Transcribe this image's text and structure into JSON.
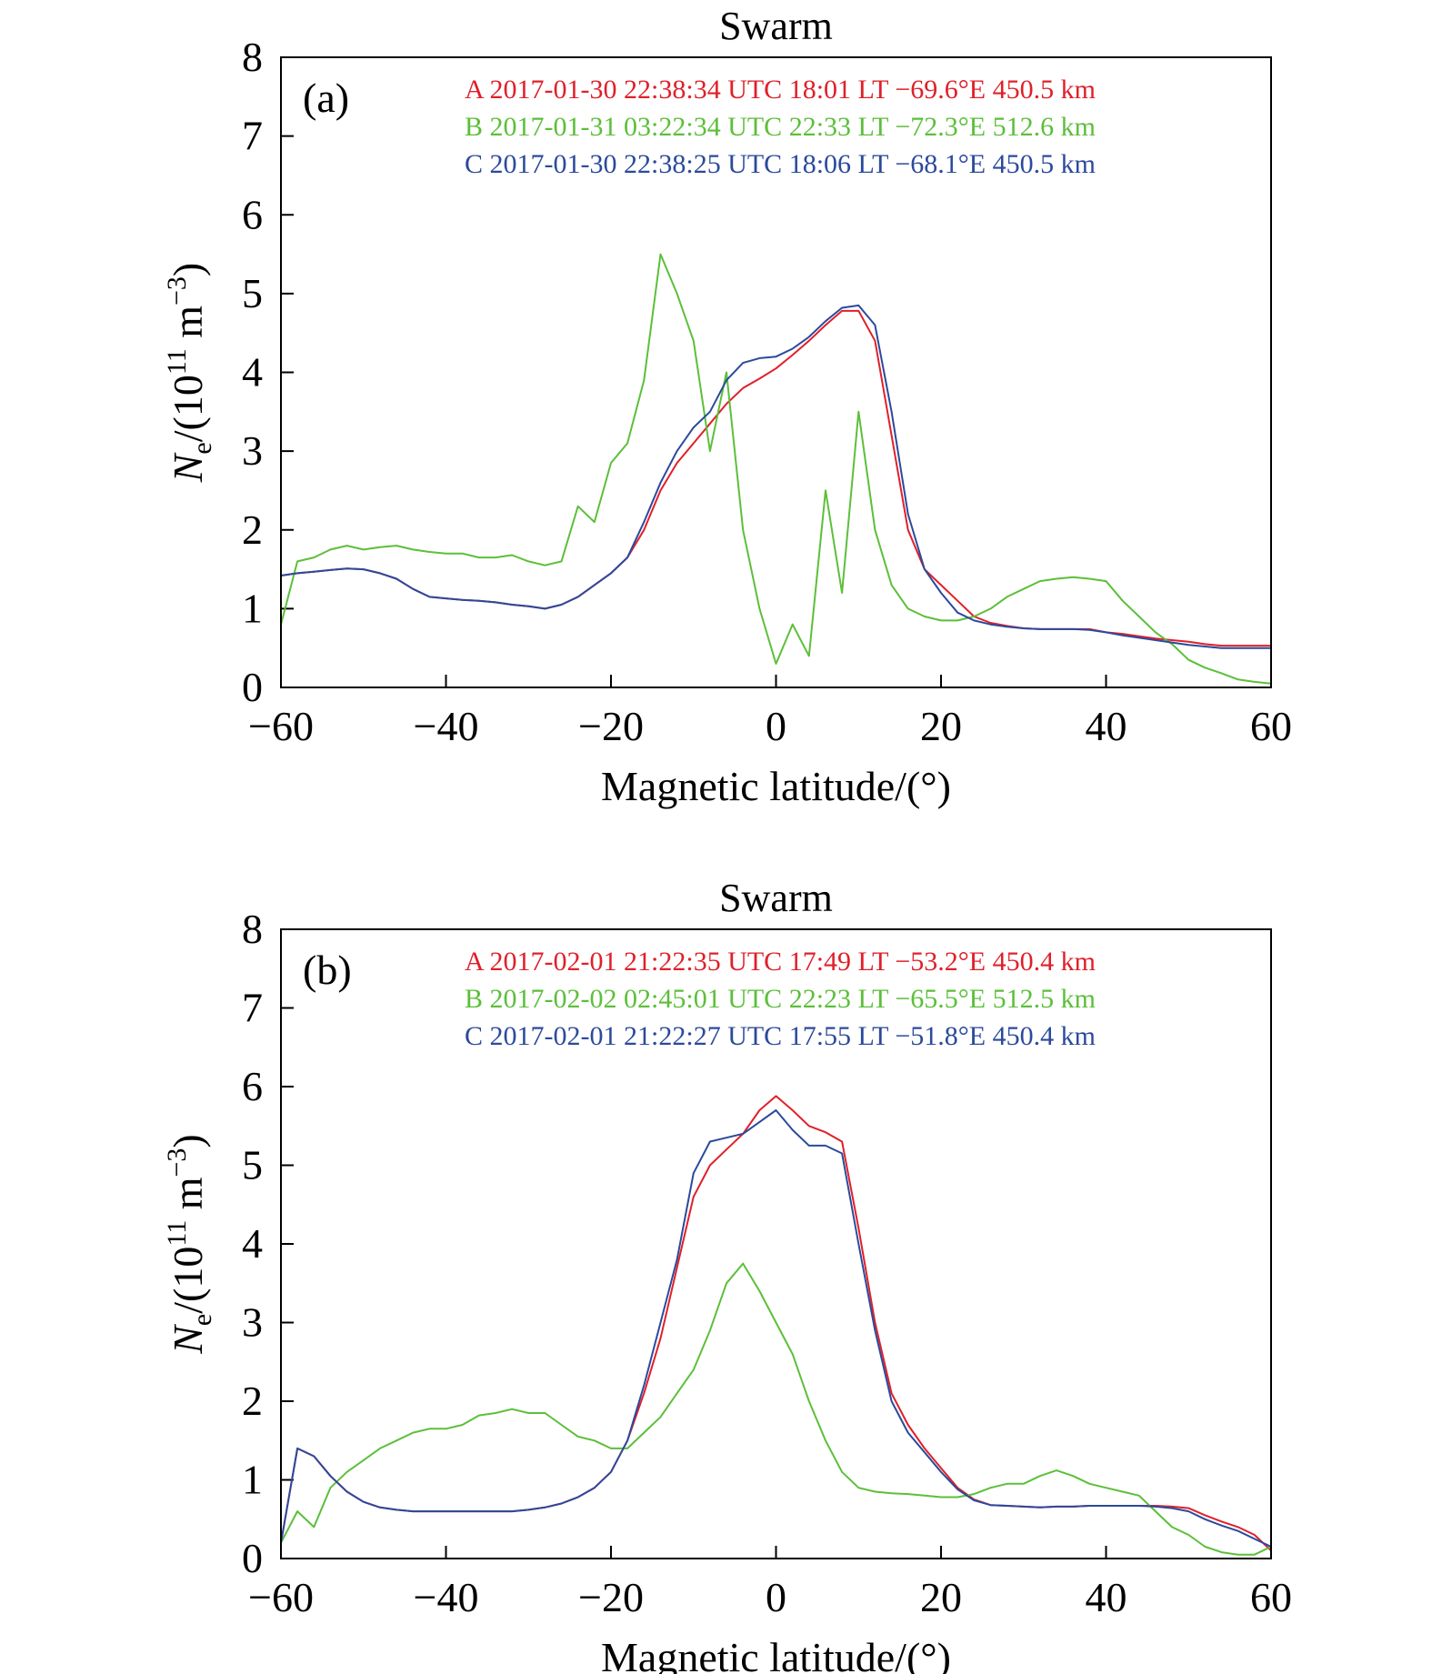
{
  "chart_data": [
    {
      "type": "line",
      "title": "Swarm",
      "panel_label": "(a)",
      "xlabel": "Magnetic latitude/(°)",
      "ylabel": [
        "N",
        "e",
        "/(10",
        "11",
        " m",
        "−3",
        ")"
      ],
      "xlim": [
        -60,
        60
      ],
      "ylim": [
        0,
        8
      ],
      "xticks": [
        {
          "value": -60,
          "label": "−60"
        },
        {
          "value": -40,
          "label": "−40"
        },
        {
          "value": -20,
          "label": "−20"
        },
        0,
        20,
        40,
        60
      ],
      "yticks": [
        0,
        1,
        2,
        3,
        4,
        5,
        6,
        7,
        8
      ],
      "x": [
        -60,
        -58,
        -56,
        -54,
        -52,
        -50,
        -48,
        -46,
        -44,
        -42,
        -40,
        -38,
        -36,
        -34,
        -32,
        -30,
        -28,
        -26,
        -24,
        -22,
        -20,
        -18,
        -16,
        -14,
        -12,
        -10,
        -8,
        -6,
        -4,
        -2,
        0,
        2,
        4,
        6,
        8,
        10,
        12,
        14,
        16,
        18,
        20,
        22,
        24,
        26,
        28,
        30,
        32,
        34,
        36,
        38,
        40,
        42,
        44,
        46,
        48,
        50,
        52,
        54,
        56,
        58,
        60
      ],
      "series": [
        {
          "name": "A 2017-01-30 22:38:34 UTC 18:01 LT −69.6°E 450.5 km",
          "color": "#e0202a",
          "values": [
            1.42,
            1.45,
            1.47,
            1.49,
            1.51,
            1.5,
            1.45,
            1.38,
            1.25,
            1.15,
            1.13,
            1.11,
            1.1,
            1.08,
            1.05,
            1.03,
            1.0,
            1.05,
            1.15,
            1.3,
            1.45,
            1.65,
            2.0,
            2.5,
            2.85,
            3.1,
            3.35,
            3.6,
            3.8,
            3.92,
            4.05,
            4.22,
            4.4,
            4.6,
            4.78,
            4.78,
            4.4,
            3.2,
            2.0,
            1.5,
            1.3,
            1.1,
            0.9,
            0.82,
            0.78,
            0.75,
            0.74,
            0.74,
            0.74,
            0.74,
            0.7,
            0.68,
            0.65,
            0.62,
            0.6,
            0.58,
            0.55,
            0.53,
            0.53,
            0.53,
            0.53
          ]
        },
        {
          "name": "B 2017-01-31 03:22:34 UTC 22:33 LT −72.3°E 512.6 km",
          "color": "#5cbf3a",
          "values": [
            0.8,
            1.6,
            1.65,
            1.75,
            1.8,
            1.75,
            1.78,
            1.8,
            1.75,
            1.72,
            1.7,
            1.7,
            1.65,
            1.65,
            1.68,
            1.6,
            1.55,
            1.6,
            2.3,
            2.1,
            2.85,
            3.1,
            3.9,
            5.5,
            5.0,
            4.4,
            3.0,
            4.0,
            2.0,
            1.0,
            0.3,
            0.8,
            0.4,
            2.5,
            1.2,
            3.5,
            2.0,
            1.3,
            1.0,
            0.9,
            0.85,
            0.85,
            0.9,
            1.0,
            1.15,
            1.25,
            1.35,
            1.38,
            1.4,
            1.38,
            1.35,
            1.1,
            0.9,
            0.7,
            0.55,
            0.35,
            0.25,
            0.18,
            0.1,
            0.07,
            0.05
          ]
        },
        {
          "name": "C 2017-01-30 22:38:25 UTC 18:06 LT −68.1°E 450.5 km",
          "color": "#2b4a9c",
          "values": [
            1.42,
            1.45,
            1.47,
            1.49,
            1.51,
            1.5,
            1.45,
            1.38,
            1.25,
            1.15,
            1.13,
            1.11,
            1.1,
            1.08,
            1.05,
            1.03,
            1.0,
            1.05,
            1.15,
            1.3,
            1.45,
            1.65,
            2.1,
            2.6,
            3.0,
            3.3,
            3.5,
            3.9,
            4.12,
            4.18,
            4.2,
            4.3,
            4.45,
            4.65,
            4.82,
            4.85,
            4.6,
            3.5,
            2.2,
            1.5,
            1.2,
            0.95,
            0.85,
            0.8,
            0.77,
            0.75,
            0.74,
            0.74,
            0.74,
            0.73,
            0.7,
            0.66,
            0.63,
            0.6,
            0.57,
            0.54,
            0.52,
            0.5,
            0.5,
            0.5,
            0.5
          ]
        }
      ]
    },
    {
      "type": "line",
      "title": "Swarm",
      "panel_label": "(b)",
      "xlabel": "Magnetic latitude/(°)",
      "ylabel": [
        "N",
        "e",
        "/(10",
        "11",
        " m",
        "−3",
        ")"
      ],
      "xlim": [
        -60,
        60
      ],
      "ylim": [
        0,
        8
      ],
      "xticks": [
        {
          "value": -60,
          "label": "−60"
        },
        {
          "value": -40,
          "label": "−40"
        },
        {
          "value": -20,
          "label": "−20"
        },
        0,
        20,
        40,
        60
      ],
      "yticks": [
        0,
        1,
        2,
        3,
        4,
        5,
        6,
        7,
        8
      ],
      "x": [
        -60,
        -58,
        -56,
        -54,
        -52,
        -50,
        -48,
        -46,
        -44,
        -42,
        -40,
        -38,
        -36,
        -34,
        -32,
        -30,
        -28,
        -26,
        -24,
        -22,
        -20,
        -18,
        -16,
        -14,
        -12,
        -10,
        -8,
        -6,
        -4,
        -2,
        0,
        2,
        4,
        6,
        8,
        10,
        12,
        14,
        16,
        18,
        20,
        22,
        24,
        26,
        28,
        30,
        32,
        34,
        36,
        38,
        40,
        42,
        44,
        46,
        48,
        50,
        52,
        54,
        56,
        58,
        60
      ],
      "series": [
        {
          "name": "A 2017-02-01 21:22:35 UTC 17:49 LT −53.2°E 450.4 km",
          "color": "#e0202a",
          "values": [
            0.2,
            1.4,
            1.3,
            1.05,
            0.85,
            0.72,
            0.65,
            0.62,
            0.6,
            0.6,
            0.6,
            0.6,
            0.6,
            0.6,
            0.6,
            0.62,
            0.65,
            0.7,
            0.78,
            0.9,
            1.1,
            1.5,
            2.1,
            2.8,
            3.7,
            4.6,
            5.0,
            5.2,
            5.4,
            5.7,
            5.88,
            5.7,
            5.5,
            5.42,
            5.3,
            4.2,
            3.0,
            2.1,
            1.7,
            1.4,
            1.15,
            0.9,
            0.75,
            0.68,
            0.67,
            0.66,
            0.65,
            0.66,
            0.66,
            0.67,
            0.67,
            0.67,
            0.67,
            0.67,
            0.66,
            0.64,
            0.55,
            0.47,
            0.4,
            0.3,
            0.1
          ]
        },
        {
          "name": "B 2017-02-02 02:45:01 UTC 22:23 LT −65.5°E 512.5 km",
          "color": "#5cbf3a",
          "values": [
            0.2,
            0.6,
            0.4,
            0.9,
            1.1,
            1.25,
            1.4,
            1.5,
            1.6,
            1.65,
            1.65,
            1.7,
            1.82,
            1.85,
            1.9,
            1.85,
            1.85,
            1.7,
            1.55,
            1.5,
            1.4,
            1.4,
            1.6,
            1.8,
            2.1,
            2.4,
            2.9,
            3.5,
            3.75,
            3.4,
            3.0,
            2.6,
            2.0,
            1.5,
            1.1,
            0.9,
            0.85,
            0.83,
            0.82,
            0.8,
            0.78,
            0.78,
            0.82,
            0.9,
            0.95,
            0.95,
            1.05,
            1.12,
            1.05,
            0.95,
            0.9,
            0.85,
            0.8,
            0.6,
            0.4,
            0.3,
            0.15,
            0.08,
            0.05,
            0.05,
            0.15
          ]
        },
        {
          "name": "C 2017-02-01 21:22:27 UTC 17:55 LT −51.8°E 450.4 km",
          "color": "#2b4a9c",
          "values": [
            0.2,
            1.4,
            1.3,
            1.05,
            0.85,
            0.72,
            0.65,
            0.62,
            0.6,
            0.6,
            0.6,
            0.6,
            0.6,
            0.6,
            0.6,
            0.62,
            0.65,
            0.7,
            0.78,
            0.9,
            1.1,
            1.5,
            2.2,
            3.0,
            3.8,
            4.9,
            5.3,
            5.35,
            5.4,
            5.55,
            5.7,
            5.45,
            5.25,
            5.25,
            5.15,
            4.0,
            2.9,
            2.0,
            1.6,
            1.35,
            1.1,
            0.88,
            0.74,
            0.68,
            0.67,
            0.66,
            0.65,
            0.66,
            0.66,
            0.67,
            0.67,
            0.67,
            0.67,
            0.66,
            0.64,
            0.6,
            0.5,
            0.42,
            0.35,
            0.25,
            0.15
          ]
        }
      ]
    }
  ]
}
